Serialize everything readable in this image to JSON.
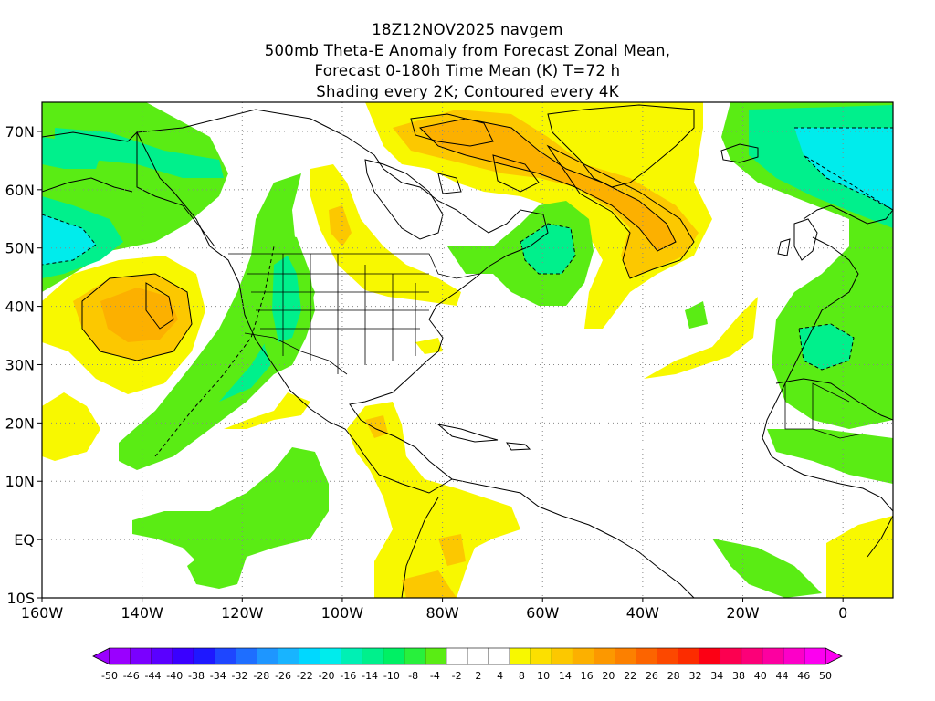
{
  "title": {
    "line1": "18Z12NOV2025 navgem",
    "line2": "500mb Theta-E Anomaly from Forecast Zonal Mean,",
    "line3": "Forecast 0-180h Time Mean (K) T=72 h",
    "line4": "Shading every 2K; Contoured every 4K"
  },
  "map": {
    "lon_range": [
      -160,
      10
    ],
    "lat_range": [
      -10,
      75
    ],
    "x_ticks": [
      {
        "lon": -160,
        "label": "160W"
      },
      {
        "lon": -140,
        "label": "140W"
      },
      {
        "lon": -120,
        "label": "120W"
      },
      {
        "lon": -100,
        "label": "100W"
      },
      {
        "lon": -80,
        "label": "80W"
      },
      {
        "lon": -60,
        "label": "60W"
      },
      {
        "lon": -40,
        "label": "40W"
      },
      {
        "lon": -20,
        "label": "20W"
      },
      {
        "lon": 0,
        "label": "0"
      }
    ],
    "y_ticks": [
      {
        "lat": 70,
        "label": "70N"
      },
      {
        "lat": 60,
        "label": "60N"
      },
      {
        "lat": 50,
        "label": "50N"
      },
      {
        "lat": 40,
        "label": "40N"
      },
      {
        "lat": 30,
        "label": "30N"
      },
      {
        "lat": 20,
        "label": "20N"
      },
      {
        "lat": 10,
        "label": "10N"
      },
      {
        "lat": 0,
        "label": "EQ"
      },
      {
        "lat": -10,
        "label": "10S"
      }
    ]
  },
  "colorbar": {
    "labels": [
      "-50",
      "-46",
      "-44",
      "-40",
      "-38",
      "-34",
      "-32",
      "-28",
      "-26",
      "-22",
      "-20",
      "-16",
      "-14",
      "-10",
      "-8",
      "-4",
      "-2",
      "2",
      "4",
      "8",
      "10",
      "14",
      "16",
      "20",
      "22",
      "26",
      "28",
      "32",
      "34",
      "38",
      "40",
      "44",
      "46",
      "50"
    ],
    "colors": [
      "#9a00ff",
      "#7a00ff",
      "#5a00ff",
      "#3a00ff",
      "#1e18ff",
      "#1e46ff",
      "#1e6eff",
      "#1e96ff",
      "#18b4ff",
      "#00d8ff",
      "#00ecec",
      "#00f0b4",
      "#00f08c",
      "#00f064",
      "#28f03c",
      "#5aec14",
      "#ffffff",
      "#ffffff",
      "#ffffff",
      "#f8f800",
      "#fce000",
      "#fcc800",
      "#fcb000",
      "#fc9800",
      "#fc8000",
      "#fc6400",
      "#fc4800",
      "#fc2c00",
      "#fc0014",
      "#fc0050",
      "#fc0078",
      "#fc00a0",
      "#fc00c8",
      "#fc00f0"
    ]
  },
  "anomaly_fields": [
    {
      "type": "positive",
      "center": [
        -135,
        38
      ],
      "radius": [
        14,
        9
      ],
      "peak": 8
    },
    {
      "type": "positive",
      "center": [
        -45,
        60
      ],
      "radius": [
        22,
        12
      ],
      "peak": 8
    },
    {
      "type": "positive",
      "center": [
        -95,
        54
      ],
      "radius": [
        8,
        10
      ],
      "peak": 4
    },
    {
      "type": "positive",
      "center": [
        -75,
        5
      ],
      "radius": [
        10,
        12
      ],
      "peak": 4
    },
    {
      "type": "negative",
      "center": [
        -155,
        50
      ],
      "radius": [
        8,
        5
      ],
      "peak": -8
    },
    {
      "type": "negative",
      "center": [
        -5,
        68
      ],
      "radius": [
        12,
        8
      ],
      "peak": -8
    },
    {
      "type": "negative",
      "center": [
        -60,
        50
      ],
      "radius": [
        6,
        5
      ],
      "peak": -6
    },
    {
      "type": "negative",
      "center": [
        -115,
        40
      ],
      "radius": [
        6,
        14
      ],
      "peak": -6
    }
  ]
}
